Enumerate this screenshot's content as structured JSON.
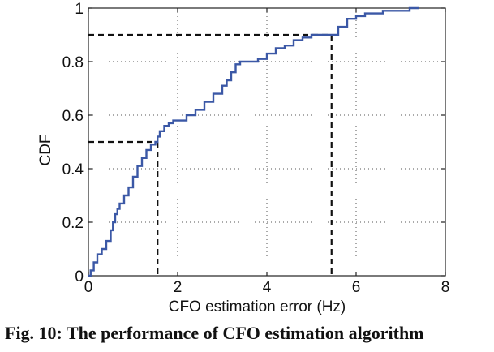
{
  "caption": "Fig. 10: The performance of CFO estimation algorithm",
  "chart_data": {
    "type": "line",
    "title": "",
    "xlabel": "CFO estimation error (Hz)",
    "ylabel": "CDF",
    "xlim": [
      0,
      8
    ],
    "ylim": [
      0,
      1
    ],
    "xticks": [
      0,
      2,
      4,
      6,
      8
    ],
    "yticks": [
      0,
      0.2,
      0.4,
      0.6,
      0.8,
      1
    ],
    "xtick_labels": [
      "0",
      "2",
      "4",
      "6",
      "8"
    ],
    "ytick_labels": [
      "0",
      "0.2",
      "0.4",
      "0.6",
      "0.8",
      "1"
    ],
    "grid": true,
    "series": [
      {
        "color": "#3b58a6",
        "step": true,
        "x": [
          0.0,
          0.05,
          0.12,
          0.2,
          0.3,
          0.4,
          0.5,
          0.55,
          0.6,
          0.65,
          0.7,
          0.8,
          0.9,
          1.0,
          1.1,
          1.2,
          1.3,
          1.4,
          1.5,
          1.55,
          1.6,
          1.7,
          1.8,
          1.9,
          2.0,
          2.2,
          2.4,
          2.6,
          2.8,
          3.0,
          3.1,
          3.2,
          3.3,
          3.4,
          3.6,
          3.8,
          4.0,
          4.2,
          4.4,
          4.6,
          4.8,
          5.0,
          5.2,
          5.4,
          5.45,
          5.6,
          5.8,
          6.0,
          6.2,
          6.4,
          6.6,
          6.8,
          7.0,
          7.2,
          7.4
        ],
        "y": [
          0.0,
          0.02,
          0.05,
          0.08,
          0.1,
          0.13,
          0.17,
          0.2,
          0.23,
          0.25,
          0.27,
          0.3,
          0.33,
          0.37,
          0.41,
          0.44,
          0.47,
          0.49,
          0.5,
          0.52,
          0.54,
          0.56,
          0.57,
          0.58,
          0.58,
          0.6,
          0.62,
          0.65,
          0.68,
          0.71,
          0.73,
          0.76,
          0.79,
          0.8,
          0.8,
          0.81,
          0.83,
          0.85,
          0.86,
          0.88,
          0.89,
          0.9,
          0.9,
          0.9,
          0.9,
          0.93,
          0.96,
          0.97,
          0.98,
          0.98,
          0.99,
          0.99,
          0.99,
          1.0,
          1.0
        ]
      }
    ],
    "reference_lines": [
      {
        "y": 0.5,
        "x": 1.55,
        "style": "dashed"
      },
      {
        "y": 0.9,
        "x": 5.45,
        "style": "dashed"
      }
    ]
  }
}
